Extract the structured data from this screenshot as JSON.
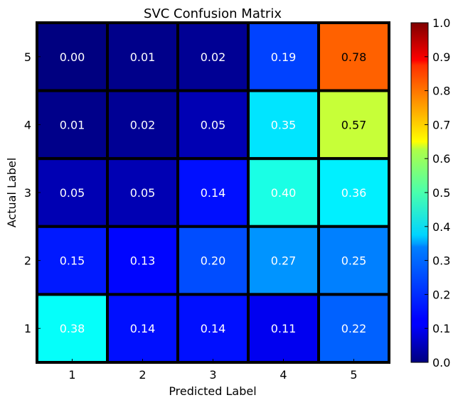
{
  "chart_data": {
    "type": "heatmap",
    "title": "SVC Confusion Matrix",
    "xlabel": "Predicted Label",
    "ylabel": "Actual Label",
    "x_categories": [
      "1",
      "2",
      "3",
      "4",
      "5"
    ],
    "y_categories": [
      "5",
      "4",
      "3",
      "2",
      "1"
    ],
    "values": [
      [
        0.0,
        0.01,
        0.02,
        0.19,
        0.78
      ],
      [
        0.01,
        0.02,
        0.05,
        0.35,
        0.57
      ],
      [
        0.05,
        0.05,
        0.14,
        0.4,
        0.36
      ],
      [
        0.15,
        0.13,
        0.2,
        0.27,
        0.25
      ],
      [
        0.38,
        0.14,
        0.14,
        0.11,
        0.22
      ]
    ],
    "value_labels": [
      [
        "0.00",
        "0.01",
        "0.02",
        "0.19",
        "0.78"
      ],
      [
        "0.01",
        "0.02",
        "0.05",
        "0.35",
        "0.57"
      ],
      [
        "0.05",
        "0.05",
        "0.14",
        "0.40",
        "0.36"
      ],
      [
        "0.15",
        "0.13",
        "0.20",
        "0.27",
        "0.25"
      ],
      [
        "0.38",
        "0.14",
        "0.14",
        "0.11",
        "0.22"
      ]
    ],
    "colormap": "jet",
    "colorbar": {
      "range": [
        0.0,
        1.0
      ],
      "ticks": [
        "0.0",
        "0.1",
        "0.2",
        "0.3",
        "0.4",
        "0.5",
        "0.6",
        "0.7",
        "0.8",
        "0.9",
        "1.0"
      ]
    },
    "grid": false,
    "legend": "none"
  }
}
